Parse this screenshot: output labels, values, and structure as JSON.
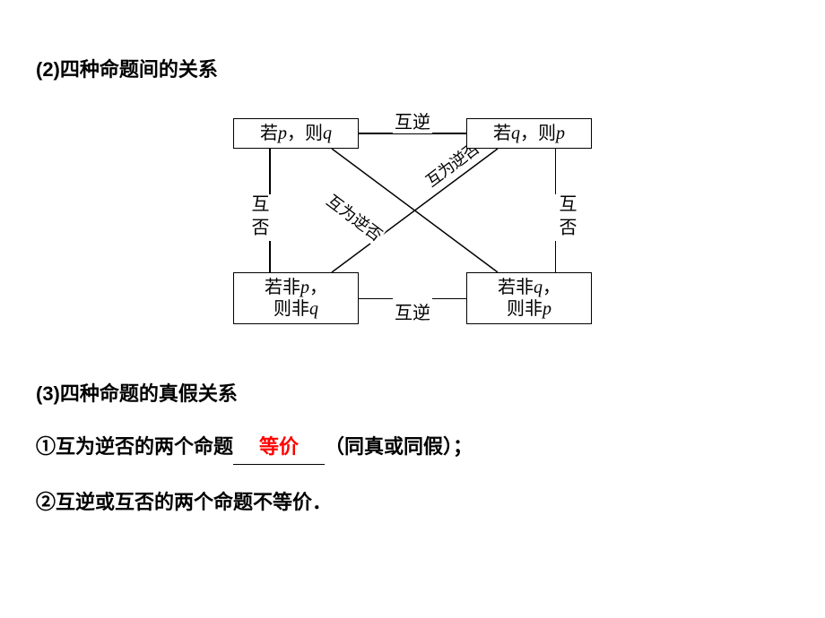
{
  "heading2": "(2)四种命题间的关系",
  "diagram": {
    "nodes": {
      "tl": "若<span class='ital'>p</span>，则<span class='ital'>q</span>",
      "tr": "若<span class='ital'>q</span>，则<span class='ital'>p</span>",
      "bl": "若非<span class='ital'>p</span>，<br>则非<span class='ital'>q</span>",
      "br": "若非<span class='ital'>q</span>，<br>则非<span class='ital'>p</span>"
    },
    "edges": {
      "top": "互逆",
      "bottom": "互逆",
      "left": "互否",
      "right": "互否",
      "diag1": "互为逆否",
      "diag2": "互为逆否"
    },
    "colors": {
      "line": "#000000",
      "text": "#000000",
      "bg": "#ffffff"
    }
  },
  "section3": {
    "title": "(3)四种命题的真假关系",
    "line1_prefix": "①互为逆否的两个命题",
    "line1_answer": "等价",
    "line1_suffix": "（同真或同假）；",
    "line2": "②互逆或互否的两个命题不等价．"
  }
}
